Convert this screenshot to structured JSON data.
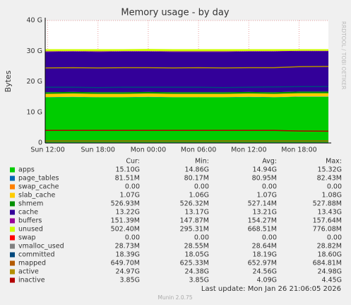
{
  "chart_data": {
    "type": "area",
    "title": "Memory usage - by day",
    "ylabel": "Bytes",
    "watermark": "RRDTOOL / TOBI OETIKER",
    "xlim": [
      11.7,
      45.5
    ],
    "xticks": [
      {
        "value": 12,
        "label": "Sun 12:00"
      },
      {
        "value": 18,
        "label": "Sun 18:00"
      },
      {
        "value": 24,
        "label": "Mon 00:00"
      },
      {
        "value": 30,
        "label": "Mon 06:00"
      },
      {
        "value": 36,
        "label": "Mon 12:00"
      },
      {
        "value": 42,
        "label": "Mon 18:00"
      }
    ],
    "ylim": [
      0,
      40
    ],
    "yticks": [
      0,
      {
        "value": 10,
        "label": "10 G"
      },
      {
        "value": 20,
        "label": "20 G"
      },
      {
        "value": 30,
        "label": "30 G"
      },
      {
        "value": 40,
        "label": "40 G"
      }
    ],
    "grid": true,
    "x": [
      11.7,
      15,
      18,
      21,
      24,
      27,
      30,
      33,
      36,
      39,
      42,
      45.5
    ],
    "stats_headers": [
      "Cur:",
      "Min:",
      "Avg:",
      "Max:"
    ],
    "series": [
      {
        "name": "apps",
        "color": "#00cc00",
        "style": "area",
        "values": [
          14.9,
          15.0,
          14.9,
          14.9,
          15.0,
          14.9,
          14.9,
          14.9,
          15.0,
          14.9,
          15.1,
          15.1
        ],
        "stats": [
          "15.10G",
          "14.86G",
          "14.94G",
          "15.32G"
        ]
      },
      {
        "name": "page_tables",
        "color": "#0066b3",
        "style": "area",
        "values": [
          0.08,
          0.08,
          0.08,
          0.08,
          0.08,
          0.08,
          0.08,
          0.08,
          0.08,
          0.08,
          0.08,
          0.08
        ],
        "stats": [
          "81.51M",
          "80.17M",
          "80.95M",
          "82.43M"
        ]
      },
      {
        "name": "swap_cache",
        "color": "#ff8000",
        "style": "area",
        "values": [
          0,
          0,
          0,
          0,
          0,
          0,
          0,
          0,
          0,
          0,
          0,
          0
        ],
        "stats": [
          "0.00",
          "0.00",
          "0.00",
          "0.00"
        ]
      },
      {
        "name": "slab_cache",
        "color": "#ffcc00",
        "style": "area",
        "values": [
          1.07,
          1.07,
          1.07,
          1.07,
          1.07,
          1.07,
          1.07,
          1.07,
          1.07,
          1.07,
          1.07,
          1.07
        ],
        "stats": [
          "1.07G",
          "1.06G",
          "1.07G",
          "1.08G"
        ]
      },
      {
        "name": "shmem",
        "color": "#008f00",
        "style": "area",
        "values": [
          0.53,
          0.53,
          0.53,
          0.53,
          0.53,
          0.53,
          0.53,
          0.53,
          0.53,
          0.53,
          0.53,
          0.53
        ],
        "stats": [
          "526.93M",
          "526.32M",
          "527.14M",
          "527.88M"
        ]
      },
      {
        "name": "cache",
        "color": "#330099",
        "style": "area",
        "values": [
          13.2,
          13.2,
          13.2,
          13.3,
          13.2,
          13.2,
          13.2,
          13.2,
          13.2,
          13.3,
          13.2,
          13.2
        ],
        "stats": [
          "13.22G",
          "13.17G",
          "13.21G",
          "13.43G"
        ]
      },
      {
        "name": "buffers",
        "color": "#990099",
        "style": "area",
        "values": [
          0.15,
          0.15,
          0.15,
          0.15,
          0.15,
          0.15,
          0.15,
          0.15,
          0.15,
          0.15,
          0.15,
          0.15
        ],
        "stats": [
          "151.39M",
          "147.87M",
          "154.27M",
          "157.64M"
        ]
      },
      {
        "name": "unused",
        "color": "#ccff00",
        "style": "area",
        "values": [
          0.7,
          0.6,
          0.7,
          0.6,
          0.7,
          0.7,
          0.7,
          0.7,
          0.6,
          0.6,
          0.5,
          0.5
        ],
        "stats": [
          "502.40M",
          "295.31M",
          "668.51M",
          "776.08M"
        ]
      },
      {
        "name": "swap",
        "color": "#ff0000",
        "style": "area",
        "values": [
          0,
          0,
          0,
          0,
          0,
          0,
          0,
          0,
          0,
          0,
          0,
          0
        ],
        "stats": [
          "0.00",
          "0.00",
          "0.00",
          "0.00"
        ]
      },
      {
        "name": "vmalloc_used",
        "color": "#808080",
        "style": "line",
        "values": [
          0.03,
          0.03,
          0.03,
          0.03,
          0.03,
          0.03,
          0.03,
          0.03,
          0.03,
          0.03,
          0.03,
          0.03
        ],
        "stats": [
          "28.73M",
          "28.55M",
          "28.64M",
          "28.82M"
        ]
      },
      {
        "name": "committed",
        "color": "#00487d",
        "style": "line",
        "values": [
          18.2,
          18.2,
          18.1,
          18.2,
          18.2,
          18.2,
          18.2,
          18.1,
          18.2,
          18.3,
          18.4,
          18.4
        ],
        "stats": [
          "18.39G",
          "18.05G",
          "18.19G",
          "18.60G"
        ]
      },
      {
        "name": "mapped",
        "color": "#b35a00",
        "style": "line",
        "values": [
          0.65,
          0.65,
          0.65,
          0.65,
          0.65,
          0.65,
          0.65,
          0.65,
          0.65,
          0.65,
          0.65,
          0.65
        ],
        "stats": [
          "649.70M",
          "625.33M",
          "652.97M",
          "684.81M"
        ]
      },
      {
        "name": "active",
        "color": "#b38f00",
        "style": "line",
        "values": [
          24.5,
          24.6,
          24.5,
          24.6,
          24.6,
          24.5,
          24.6,
          24.5,
          24.6,
          24.6,
          24.9,
          25.0
        ],
        "stats": [
          "24.97G",
          "24.38G",
          "24.56G",
          "24.98G"
        ]
      },
      {
        "name": "inactive",
        "color": "#b30000",
        "style": "line",
        "values": [
          4.1,
          4.1,
          4.1,
          4.1,
          4.1,
          4.1,
          4.1,
          4.1,
          4.1,
          4.1,
          3.9,
          3.85
        ],
        "stats": [
          "3.85G",
          "3.85G",
          "4.09G",
          "4.45G"
        ]
      }
    ],
    "last_update": "Last update: Mon Jan 26 21:06:05 2026",
    "footer": "Munin 2.0.75"
  }
}
